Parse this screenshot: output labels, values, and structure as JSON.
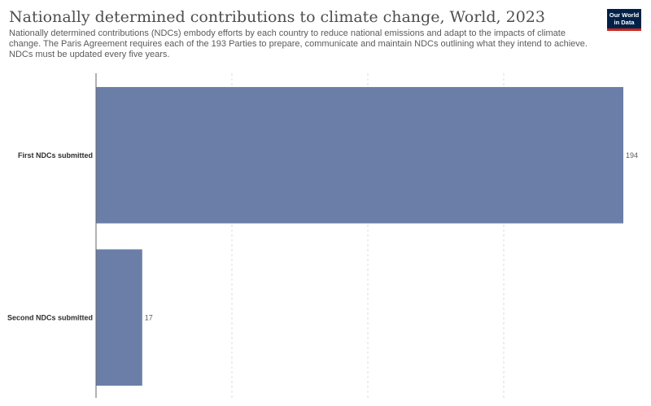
{
  "title": "Nationally determined contributions to climate change, World, 2023",
  "subtitle": "Nationally determined contributions (NDCs) embody efforts by each country to reduce national emissions and adapt to the impacts of climate change. The Paris Agreement requires each of the 193 Parties to prepare, communicate and maintain NDCs outlining what they intend to achieve. NDCs must be updated every five years.",
  "logo": {
    "line1": "Our World",
    "line2": "in Data"
  },
  "colors": {
    "bar": "#6a7ea8",
    "grid": "#dddddd",
    "axis": "#666666",
    "logo_bg": "#002147",
    "logo_accent": "#ce261e"
  },
  "chart_data": {
    "type": "bar",
    "orientation": "horizontal",
    "categories": [
      "First NDCs submitted",
      "Second NDCs submitted"
    ],
    "values": [
      194,
      17
    ],
    "value_labels": [
      "194",
      "17"
    ],
    "xlim": [
      0,
      194
    ],
    "grid": "vertical dashed",
    "legend": "none"
  }
}
